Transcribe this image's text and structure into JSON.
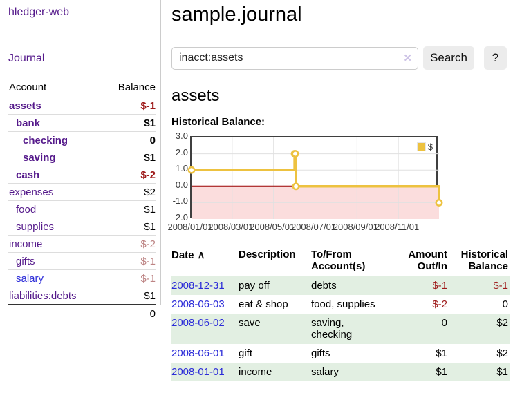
{
  "app": {
    "title": "hledger-web"
  },
  "sidebar": {
    "journal_label": "Journal",
    "table": {
      "account_header": "Account",
      "balance_header": "Balance"
    },
    "accounts": [
      {
        "name": "assets",
        "depth": 1,
        "bold": true,
        "link_color": "purple",
        "balance": "$-1",
        "balance_class": "neg"
      },
      {
        "name": "bank",
        "depth": 2,
        "bold": true,
        "link_color": "purple",
        "balance": "$1",
        "balance_class": ""
      },
      {
        "name": "checking",
        "depth": 3,
        "bold": true,
        "link_color": "purple",
        "balance": "0",
        "balance_class": ""
      },
      {
        "name": "saving",
        "depth": 3,
        "bold": true,
        "link_color": "purple",
        "balance": "$1",
        "balance_class": ""
      },
      {
        "name": "cash",
        "depth": 2,
        "bold": true,
        "link_color": "purple",
        "balance": "$-2",
        "balance_class": "neg"
      },
      {
        "name": "expenses",
        "depth": 1,
        "bold": false,
        "link_color": "purple",
        "balance": "$2",
        "balance_class": ""
      },
      {
        "name": "food",
        "depth": 2,
        "bold": false,
        "link_color": "purple",
        "balance": "$1",
        "balance_class": ""
      },
      {
        "name": "supplies",
        "depth": 2,
        "bold": false,
        "link_color": "purple",
        "balance": "$1",
        "balance_class": ""
      },
      {
        "name": "income",
        "depth": 1,
        "bold": false,
        "link_color": "purple",
        "balance": "$-2",
        "balance_class": "soft-neg"
      },
      {
        "name": "gifts",
        "depth": 2,
        "bold": false,
        "link_color": "purple",
        "balance": "$-1",
        "balance_class": "soft-neg"
      },
      {
        "name": "salary",
        "depth": 2,
        "bold": false,
        "link_color": "blue",
        "balance": "$-1",
        "balance_class": "soft-neg"
      },
      {
        "name": "liabilities:debts",
        "depth": 1,
        "bold": false,
        "link_color": "purple",
        "balance": "$1",
        "balance_class": ""
      }
    ],
    "total": "0"
  },
  "header": {
    "title": "sample.journal"
  },
  "search": {
    "value": "inacct:assets",
    "clear_icon": "✕",
    "button_label": "Search",
    "help_label": "?"
  },
  "account_page": {
    "heading": "assets"
  },
  "chart_data": {
    "type": "line",
    "style": "step",
    "title": "Historical Balance:",
    "legend": [
      {
        "label": "$",
        "color": "#edc240"
      }
    ],
    "x_start": "2008-01-01",
    "x_end": "2008-12-31",
    "x_ticks": [
      {
        "label": "2008/01/01",
        "date": "2008-01-01"
      },
      {
        "label": "2008/03/01",
        "date": "2008-03-01"
      },
      {
        "label": "2008/05/01",
        "date": "2008-05-01"
      },
      {
        "label": "2008/07/01",
        "date": "2008-07-01"
      },
      {
        "label": "2008/09/01",
        "date": "2008-09-01"
      },
      {
        "label": "2008/11/01",
        "date": "2008-11-01"
      }
    ],
    "y_ticks": [
      "3.0",
      "2.0",
      "1.0",
      "0.0",
      "-1.0",
      "-2.0"
    ],
    "ylim": [
      -2,
      3
    ],
    "grid": true,
    "below_zero_fill": "#fbdddd",
    "zero_line_color": "#990000",
    "points": [
      {
        "date": "2008-01-01",
        "value": 1
      },
      {
        "date": "2008-06-01",
        "value": 2
      },
      {
        "date": "2008-06-02",
        "value": 2
      },
      {
        "date": "2008-06-03",
        "value": 0
      },
      {
        "date": "2008-12-31",
        "value": -1
      }
    ]
  },
  "register": {
    "headers": {
      "date": "Date",
      "sort_caret": "∧",
      "description": "Description",
      "accounts_line1": "To/From",
      "accounts_line2": "Account(s)",
      "amount_line1": "Amount",
      "amount_line2": "Out/In",
      "balance_line1": "Historical",
      "balance_line2": "Balance"
    },
    "rows": [
      {
        "date": "2008-12-31",
        "description": "pay off",
        "accounts": "debts",
        "amount": "$-1",
        "amount_neg": true,
        "balance": "$-1",
        "balance_neg": true
      },
      {
        "date": "2008-06-03",
        "description": "eat & shop",
        "accounts": "food, supplies",
        "amount": "$-2",
        "amount_neg": true,
        "balance": "0",
        "balance_neg": false
      },
      {
        "date": "2008-06-02",
        "description": "save",
        "accounts": "saving, checking",
        "amount": "0",
        "amount_neg": false,
        "balance": "$2",
        "balance_neg": false
      },
      {
        "date": "2008-06-01",
        "description": "gift",
        "accounts": "gifts",
        "amount": "$1",
        "amount_neg": false,
        "balance": "$2",
        "balance_neg": false
      },
      {
        "date": "2008-01-01",
        "description": "income",
        "accounts": "salary",
        "amount": "$1",
        "amount_neg": false,
        "balance": "$1",
        "balance_neg": false
      }
    ]
  },
  "colors": {
    "purple_link": "#551a8b",
    "blue_link": "#2b2bd8",
    "negative_strong": "#9e1a1a",
    "negative_soft": "#bd8484",
    "row_green": "#e2efe2",
    "button_bg": "#ececec",
    "chart_line_gold": "#edc240",
    "chart_below_zero_pink": "#fbdddd",
    "chart_zero_line_red": "#990000"
  }
}
